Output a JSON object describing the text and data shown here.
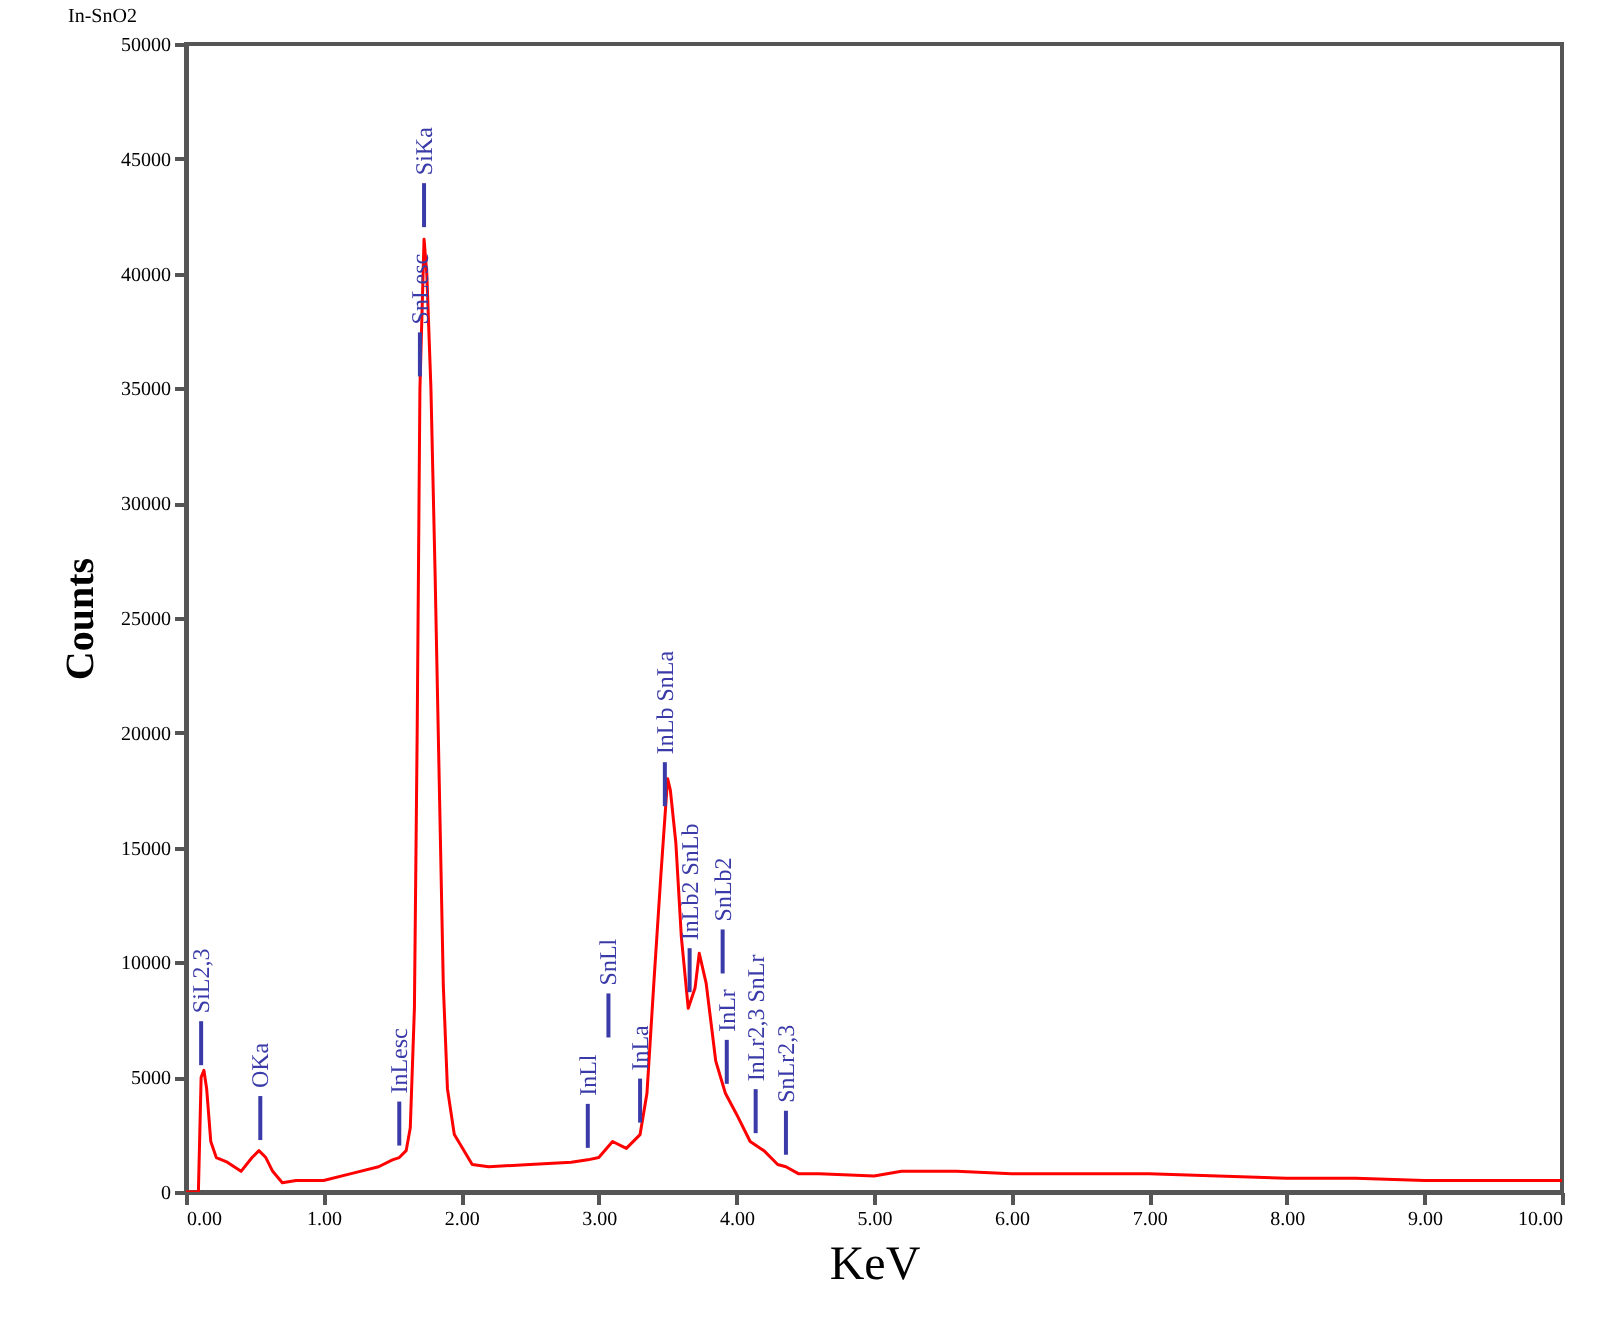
{
  "chart_data": {
    "type": "line",
    "title": "In-SnO2",
    "xlabel": "KeV",
    "ylabel": "Counts",
    "x": [
      0,
      0.09,
      0.11,
      0.13,
      0.15,
      0.18,
      0.22,
      0.3,
      0.4,
      0.48,
      0.53,
      0.58,
      0.63,
      0.7,
      0.8,
      1.0,
      1.2,
      1.4,
      1.5,
      1.55,
      1.6,
      1.63,
      1.66,
      1.68,
      1.7,
      1.73,
      1.75,
      1.78,
      1.81,
      1.84,
      1.87,
      1.9,
      1.95,
      2.0,
      2.08,
      2.2,
      2.5,
      2.8,
      2.92,
      3.0,
      3.1,
      3.2,
      3.3,
      3.35,
      3.4,
      3.45,
      3.5,
      3.52,
      3.56,
      3.6,
      3.65,
      3.7,
      3.73,
      3.78,
      3.85,
      3.92,
      4.0,
      4.1,
      4.2,
      4.3,
      4.36,
      4.45,
      4.6,
      5.0,
      5.2,
      5.6,
      6.0,
      6.5,
      7.0,
      7.5,
      8.0,
      8.5,
      9.0,
      9.5,
      10.0
    ],
    "series": [
      {
        "color": "#ff0000",
        "values": [
          0,
          0,
          5000,
          5300,
          4500,
          2200,
          1500,
          1300,
          900,
          1500,
          1800,
          1500,
          900,
          400,
          500,
          500,
          800,
          1100,
          1400,
          1500,
          1800,
          2800,
          8000,
          20000,
          35000,
          41500,
          40000,
          35000,
          27000,
          18000,
          9000,
          4500,
          2500,
          2000,
          1200,
          1100,
          1200,
          1300,
          1400,
          1500,
          2200,
          1900,
          2500,
          4300,
          9100,
          13700,
          18000,
          17500,
          15200,
          11100,
          8000,
          8900,
          10400,
          9100,
          5700,
          4300,
          3400,
          2200,
          1800,
          1200,
          1100,
          800,
          800,
          700,
          900,
          900,
          800,
          800,
          800,
          700,
          600,
          600,
          500,
          500,
          500
        ]
      }
    ],
    "xlim": [
      0,
      10
    ],
    "xticks": [
      {
        "value": 0,
        "label": "0.00"
      },
      {
        "value": 1,
        "label": "1.00"
      },
      {
        "value": 2,
        "label": "2.00"
      },
      {
        "value": 3,
        "label": "3.00"
      },
      {
        "value": 4,
        "label": "4.00"
      },
      {
        "value": 5,
        "label": "5.00"
      },
      {
        "value": 6,
        "label": "6.00"
      },
      {
        "value": 7,
        "label": "7.00"
      },
      {
        "value": 8,
        "label": "8.00"
      },
      {
        "value": 9,
        "label": "9.00"
      },
      {
        "value": 10,
        "label": "10.00"
      }
    ],
    "ylim": [
      0,
      50000
    ],
    "yticks": [
      0,
      5000,
      10000,
      15000,
      20000,
      25000,
      30000,
      35000,
      40000,
      45000,
      50000
    ],
    "marker": "none",
    "line_style": "solid",
    "annotations": [
      {
        "text": "SiL2,3",
        "x": 0.11
      },
      {
        "text": "OKa",
        "x": 0.54
      },
      {
        "text": "InLesc",
        "x": 1.55
      },
      {
        "text": "SiKa",
        "x": 1.73
      },
      {
        "text": "SnLesc",
        "x": 1.7
      },
      {
        "text": "InLl",
        "x": 2.92
      },
      {
        "text": "SnLl",
        "x": 3.07
      },
      {
        "text": "InLa",
        "x": 3.3
      },
      {
        "text": "InLb SnLa",
        "x": 3.48
      },
      {
        "text": "InLb2 SnLb",
        "x": 3.66
      },
      {
        "text": "InLr",
        "x": 3.93
      },
      {
        "text": "SnLb2",
        "x": 3.9
      },
      {
        "text": "InLr2,3 SnLr",
        "x": 4.14
      },
      {
        "text": "SnLr2,3",
        "x": 4.36
      }
    ]
  }
}
